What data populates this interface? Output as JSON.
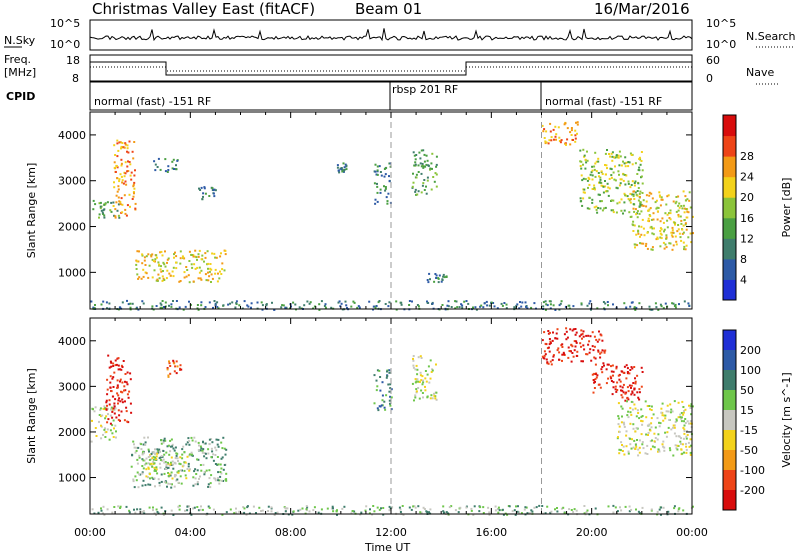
{
  "header": {
    "title": "Christmas Valley East (fitACF)",
    "beam": "Beam 01",
    "date": "16/Mar/2016"
  },
  "status_panels": {
    "nsky_label": "N.Sky",
    "nsky_ticks": [
      "10^5",
      "10^0"
    ],
    "nsearch_label": "N.Search",
    "freq_label_1": "Freq.",
    "freq_label_2": "[MHz]",
    "freq_ticks": [
      "18",
      "8"
    ],
    "nave_ticks": [
      "60",
      "0"
    ],
    "nave_label": "Nave",
    "cpid_label": "CPID",
    "cpid_segments": [
      {
        "label": "normal (fast) -151 RF",
        "start_hour": 0
      },
      {
        "label": "rbsp 201 RF",
        "start_hour": 12
      },
      {
        "label": "normal (fast) -151 RF",
        "start_hour": 18
      }
    ]
  },
  "chart_data": [
    {
      "type": "heatmap",
      "name": "power",
      "ylabel": "Slant Range [km]",
      "xlabel": "Time UT",
      "xlim": [
        0,
        24
      ],
      "ylim": [
        200,
        4500
      ],
      "x_tick_labels": [
        "00:00",
        "04:00",
        "08:00",
        "12:00",
        "16:00",
        "20:00",
        "00:00"
      ],
      "y_ticks": [
        1000,
        2000,
        3000,
        4000
      ],
      "colorbar": {
        "label": "Power [dB]",
        "ticks": [
          4,
          8,
          12,
          16,
          20,
          24,
          28
        ],
        "colors": [
          "#1f2fd6",
          "#2d5aa6",
          "#3f7d6c",
          "#4a9f42",
          "#8bc43a",
          "#f3d21b",
          "#f39a16",
          "#ee4417",
          "#d80c0c"
        ]
      },
      "echo_regions": [
        {
          "t": [
            0.0,
            1.2
          ],
          "r": [
            2200,
            2600
          ],
          "level": 12
        },
        {
          "t": [
            0.9,
            1.8
          ],
          "r": [
            2200,
            3900
          ],
          "level": 22
        },
        {
          "t": [
            1.8,
            5.4
          ],
          "r": [
            800,
            1500
          ],
          "level": 18
        },
        {
          "t": [
            2.5,
            3.5
          ],
          "r": [
            3200,
            3500
          ],
          "level": 8
        },
        {
          "t": [
            4.3,
            5.0
          ],
          "r": [
            2600,
            2900
          ],
          "level": 6
        },
        {
          "t": [
            9.8,
            10.2
          ],
          "r": [
            3200,
            3400
          ],
          "level": 6
        },
        {
          "t": [
            11.3,
            12.0
          ],
          "r": [
            2500,
            3400
          ],
          "level": 8
        },
        {
          "t": [
            12.8,
            13.8
          ],
          "r": [
            2700,
            3700
          ],
          "level": 10
        },
        {
          "t": [
            13.4,
            14.2
          ],
          "r": [
            800,
            1000
          ],
          "level": 6
        },
        {
          "t": [
            18.0,
            19.5
          ],
          "r": [
            3800,
            4300
          ],
          "level": 22
        },
        {
          "t": [
            19.5,
            22.0
          ],
          "r": [
            2300,
            3700
          ],
          "level": 16
        },
        {
          "t": [
            21.5,
            24.0
          ],
          "r": [
            1500,
            2800
          ],
          "level": 20
        },
        {
          "t": [
            0.0,
            24.0
          ],
          "r": [
            200,
            400
          ],
          "level": 8
        }
      ]
    },
    {
      "type": "heatmap",
      "name": "velocity",
      "ylabel": "Slant Range [km]",
      "xlabel": "Time UT",
      "xlim": [
        0,
        24
      ],
      "ylim": [
        200,
        4500
      ],
      "x_tick_labels": [
        "00:00",
        "04:00",
        "08:00",
        "12:00",
        "16:00",
        "20:00",
        "00:00"
      ],
      "y_ticks": [
        1000,
        2000,
        3000,
        4000
      ],
      "colorbar": {
        "label": "Velocity [m s^-1]",
        "ticks": [
          200,
          100,
          50,
          15,
          -15,
          -50,
          -100,
          -200
        ],
        "colors": [
          "#1f2fd6",
          "#2d5aa6",
          "#3f7d6c",
          "#6ec64a",
          "#c7c7c0",
          "#f3d21b",
          "#f39a16",
          "#ee4417",
          "#d80c0c"
        ]
      },
      "echo_regions": [
        {
          "t": [
            0.0,
            1.0
          ],
          "r": [
            1800,
            2600
          ],
          "level": 0
        },
        {
          "t": [
            0.6,
            1.6
          ],
          "r": [
            2200,
            3700
          ],
          "level": -200
        },
        {
          "t": [
            1.6,
            5.4
          ],
          "r": [
            800,
            1900
          ],
          "level": 20
        },
        {
          "t": [
            2.0,
            4.0
          ],
          "r": [
            1000,
            1600
          ],
          "level": 0
        },
        {
          "t": [
            3.0,
            3.6
          ],
          "r": [
            3200,
            3600
          ],
          "level": -100
        },
        {
          "t": [
            11.3,
            12.0
          ],
          "r": [
            2500,
            3400
          ],
          "level": 30
        },
        {
          "t": [
            12.8,
            13.8
          ],
          "r": [
            2700,
            3700
          ],
          "level": 0
        },
        {
          "t": [
            18.0,
            20.5
          ],
          "r": [
            3500,
            4300
          ],
          "level": -200
        },
        {
          "t": [
            20.0,
            22.0
          ],
          "r": [
            2700,
            3500
          ],
          "level": -150
        },
        {
          "t": [
            21.0,
            24.0
          ],
          "r": [
            1500,
            2700
          ],
          "level": 0
        },
        {
          "t": [
            0.0,
            24.0
          ],
          "r": [
            200,
            400
          ],
          "level": 20
        }
      ]
    }
  ]
}
